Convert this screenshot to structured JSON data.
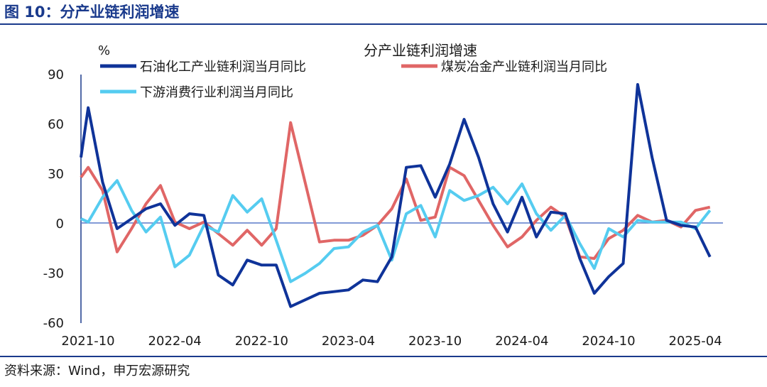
{
  "figure_title": "图 10：分产业链利润增速",
  "source": "资料来源：Wind，申万宏源研究",
  "chart_data": {
    "type": "line",
    "title": "分产业链利润增速",
    "ylabel": "%",
    "ylim": [
      -60,
      90
    ],
    "yticks": [
      90,
      60,
      30,
      0,
      -30,
      -60
    ],
    "xtick_labels": [
      "2021-10",
      "2022-04",
      "2022-10",
      "2023-04",
      "2023-10",
      "2024-04",
      "2024-10",
      "2025-04"
    ],
    "legend_position": "top",
    "grid": false,
    "series": [
      {
        "name": "石油化工产业链利润当月同比",
        "color": "#0f3399",
        "points": [
          [
            0,
            40
          ],
          [
            1,
            70
          ],
          [
            3,
            25
          ],
          [
            5,
            -3
          ],
          [
            7,
            3
          ],
          [
            9,
            9
          ],
          [
            11,
            12
          ],
          [
            13,
            -1
          ],
          [
            15,
            6
          ],
          [
            17,
            5
          ],
          [
            19,
            -31
          ],
          [
            21,
            -37
          ],
          [
            23,
            -22
          ],
          [
            25,
            -25
          ],
          [
            27,
            -25
          ],
          [
            29,
            -50
          ],
          [
            31,
            -46
          ],
          [
            33,
            -42
          ],
          [
            35,
            -41
          ],
          [
            37,
            -40
          ],
          [
            39,
            -34
          ],
          [
            41,
            -35
          ],
          [
            43,
            -20
          ],
          [
            45,
            34
          ],
          [
            47,
            35
          ],
          [
            49,
            16
          ],
          [
            51,
            36
          ],
          [
            53,
            63
          ],
          [
            55,
            40
          ],
          [
            57,
            12
          ],
          [
            59,
            -5
          ],
          [
            61,
            16
          ],
          [
            63,
            -8
          ],
          [
            65,
            7
          ],
          [
            67,
            6
          ],
          [
            69,
            -21
          ],
          [
            71,
            -42
          ],
          [
            73,
            -32
          ],
          [
            75,
            -24
          ],
          [
            77,
            84
          ],
          [
            79,
            40
          ],
          [
            81,
            2
          ],
          [
            83,
            -1
          ],
          [
            85,
            -2
          ],
          [
            87,
            -20
          ]
        ]
      },
      {
        "name": "煤炭冶金产业链利润当月同比",
        "color": "#e06666",
        "points": [
          [
            0,
            28
          ],
          [
            1,
            34
          ],
          [
            3,
            20
          ],
          [
            5,
            -17
          ],
          [
            7,
            -3
          ],
          [
            9,
            12
          ],
          [
            11,
            23
          ],
          [
            13,
            1
          ],
          [
            15,
            -3
          ],
          [
            17,
            1
          ],
          [
            19,
            -6
          ],
          [
            21,
            -13
          ],
          [
            23,
            -4
          ],
          [
            25,
            -13
          ],
          [
            27,
            -3
          ],
          [
            29,
            61
          ],
          [
            31,
            25
          ],
          [
            33,
            -11
          ],
          [
            35,
            -10
          ],
          [
            37,
            -10
          ],
          [
            39,
            -7
          ],
          [
            41,
            -1
          ],
          [
            43,
            9
          ],
          [
            45,
            27
          ],
          [
            47,
            2
          ],
          [
            49,
            4
          ],
          [
            51,
            34
          ],
          [
            53,
            29
          ],
          [
            55,
            14
          ],
          [
            57,
            -1
          ],
          [
            59,
            -14
          ],
          [
            61,
            -8
          ],
          [
            63,
            2
          ],
          [
            65,
            10
          ],
          [
            67,
            4
          ],
          [
            69,
            -20
          ],
          [
            71,
            -21
          ],
          [
            73,
            -9
          ],
          [
            75,
            -4
          ],
          [
            77,
            5
          ],
          [
            79,
            1
          ],
          [
            81,
            2
          ],
          [
            83,
            -2
          ],
          [
            85,
            8
          ],
          [
            87,
            10
          ]
        ]
      },
      {
        "name": "下游消费行业利润当月同比",
        "color": "#55ccf0",
        "points": [
          [
            0,
            3
          ],
          [
            1,
            1
          ],
          [
            3,
            16
          ],
          [
            5,
            26
          ],
          [
            7,
            8
          ],
          [
            9,
            -5
          ],
          [
            11,
            4
          ],
          [
            13,
            -26
          ],
          [
            15,
            -19
          ],
          [
            17,
            -1
          ],
          [
            19,
            -5
          ],
          [
            21,
            17
          ],
          [
            23,
            7
          ],
          [
            25,
            15
          ],
          [
            27,
            -10
          ],
          [
            29,
            -35
          ],
          [
            31,
            -30
          ],
          [
            33,
            -24
          ],
          [
            35,
            -15
          ],
          [
            37,
            -14
          ],
          [
            39,
            -5
          ],
          [
            41,
            -1
          ],
          [
            43,
            -22
          ],
          [
            45,
            6
          ],
          [
            47,
            11
          ],
          [
            49,
            -8
          ],
          [
            51,
            20
          ],
          [
            53,
            14
          ],
          [
            55,
            17
          ],
          [
            57,
            22
          ],
          [
            59,
            12
          ],
          [
            61,
            24
          ],
          [
            63,
            6
          ],
          [
            65,
            -4
          ],
          [
            67,
            5
          ],
          [
            69,
            -12
          ],
          [
            71,
            -27
          ],
          [
            73,
            -3
          ],
          [
            75,
            -8
          ],
          [
            77,
            2
          ],
          [
            79,
            1
          ],
          [
            81,
            1
          ],
          [
            83,
            1
          ],
          [
            85,
            -3
          ],
          [
            87,
            8
          ]
        ]
      }
    ]
  }
}
